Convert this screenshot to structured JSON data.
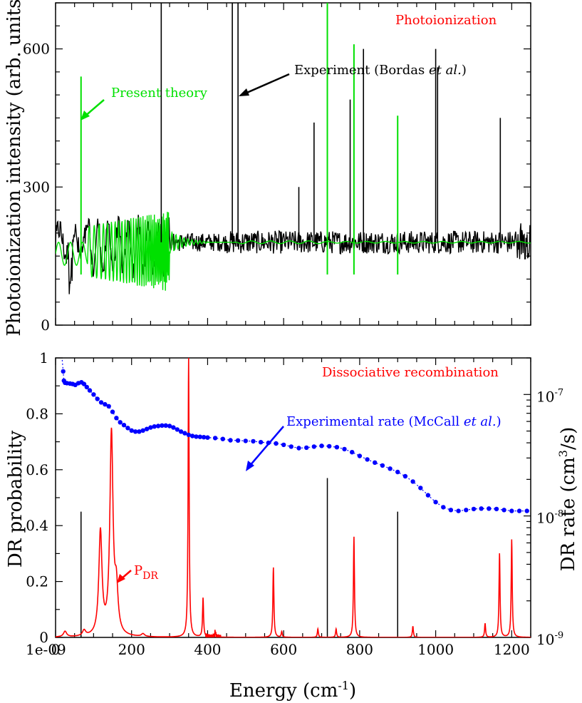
{
  "chart_data": [
    {
      "type": "line",
      "panel": "top",
      "title": "Photoionization",
      "xlabel": "",
      "ylabel": "Photoionization intensity (arb. units)",
      "xlim": [
        0,
        1250
      ],
      "ylim": [
        0,
        700
      ],
      "y_ticks": [
        0,
        300,
        600
      ],
      "y_tick_labels": [
        "0",
        "300",
        "600"
      ],
      "colors": {
        "experiment": "#000000",
        "theory": "#00e000",
        "title": "#ff0000"
      },
      "series": [
        {
          "name": "Experiment (Bordas et al.)",
          "baseline": 180,
          "peaks": [
            {
              "x": 278,
              "y": 700
            },
            {
              "x": 465,
              "y": 700
            },
            {
              "x": 480,
              "y": 700
            },
            {
              "x": 640,
              "y": 300
            },
            {
              "x": 680,
              "y": 440
            },
            {
              "x": 775,
              "y": 490
            },
            {
              "x": 810,
              "y": 600
            },
            {
              "x": 1000,
              "y": 600
            },
            {
              "x": 1005,
              "y": 560
            },
            {
              "x": 1170,
              "y": 450
            }
          ]
        },
        {
          "name": "Present theory",
          "baseline": 180,
          "peaks": [
            {
              "x": 67,
              "y": 540
            },
            {
              "x": 715,
              "y": 700
            },
            {
              "x": 785,
              "y": 610
            },
            {
              "x": 900,
              "y": 455
            }
          ]
        }
      ],
      "annotations": [
        {
          "text": "Present theory",
          "target_x": 67,
          "target_y": 450
        },
        {
          "text_prefix": "Experiment (Bordas ",
          "text_italic": "et al.",
          "text_suffix": ")",
          "target_x": 480,
          "target_y": 490
        }
      ]
    },
    {
      "type": "line",
      "panel": "bottom",
      "title": "Dissociative recombination",
      "xlabel_main": "Energy (cm",
      "xlabel_sup": "-1",
      "xlabel_end": ")",
      "ylabel": "DR probability",
      "ylabel_right_main": "DR rate (cm",
      "ylabel_right_sup": "3",
      "ylabel_right_end": "/s)",
      "xlim": [
        0,
        1250
      ],
      "ylim": [
        0,
        1
      ],
      "y_ticks": [
        0,
        0.2,
        0.4,
        0.6,
        0.8,
        1
      ],
      "y_tick_labels": [
        "0",
        "0.2",
        "0.4",
        "0.6",
        "0.8",
        "1"
      ],
      "y_extra_label": "1e-09",
      "x_ticks": [
        0,
        200,
        400,
        600,
        800,
        1000,
        1200
      ],
      "x_tick_labels": [
        "0",
        "200",
        "400",
        "600",
        "800",
        "1000",
        "1200"
      ],
      "y_right_range": [
        1e-09,
        2e-07
      ],
      "y_right_tick_labels": [
        "10",
        "10",
        "10"
      ],
      "y_right_tick_sups": [
        "-7",
        "-8",
        "-9"
      ],
      "y_right_tick_values": [
        1e-07,
        1e-08,
        1e-09
      ],
      "colors": {
        "probability": "#ff0000",
        "rate": "#0000ff",
        "lines": "#000000",
        "title": "#ff0000"
      },
      "series": [
        {
          "name": "P_DR",
          "baseline": 0,
          "peaks": [
            {
              "x": 25,
              "y": 0.02
            },
            {
              "x": 75,
              "y": 0.02
            },
            {
              "x": 118,
              "y": 0.37
            },
            {
              "x": 147,
              "y": 0.72
            },
            {
              "x": 160,
              "y": 0.15
            },
            {
              "x": 230,
              "y": 0.01
            },
            {
              "x": 350,
              "y": 1.0
            },
            {
              "x": 388,
              "y": 0.14
            },
            {
              "x": 420,
              "y": 0.02
            },
            {
              "x": 573,
              "y": 0.25
            },
            {
              "x": 595,
              "y": 0.02
            },
            {
              "x": 690,
              "y": 0.03
            },
            {
              "x": 738,
              "y": 0.03
            },
            {
              "x": 785,
              "y": 0.36
            },
            {
              "x": 940,
              "y": 0.04
            },
            {
              "x": 1130,
              "y": 0.05
            },
            {
              "x": 1168,
              "y": 0.3
            },
            {
              "x": 1200,
              "y": 0.35
            }
          ]
        },
        {
          "name": "Experimental rate (McCall et al.)",
          "units": "cm^3/s",
          "points": [
            [
              16,
              2.2e-07
            ],
            [
              20,
              1.55e-07
            ],
            [
              22,
              1.3e-07
            ],
            [
              25,
              1.25e-07
            ],
            [
              30,
              1.24e-07
            ],
            [
              38,
              1.23e-07
            ],
            [
              45,
              1.22e-07
            ],
            [
              52,
              1.2e-07
            ],
            [
              60,
              1.24e-07
            ],
            [
              68,
              1.26e-07
            ],
            [
              75,
              1.22e-07
            ],
            [
              82,
              1.15e-07
            ],
            [
              90,
              1.08e-07
            ],
            [
              100,
              1e-07
            ],
            [
              110,
              9.2e-08
            ],
            [
              120,
              8.6e-08
            ],
            [
              130,
              8.3e-08
            ],
            [
              140,
              8e-08
            ],
            [
              150,
              7.2e-08
            ],
            [
              160,
              6.4e-08
            ],
            [
              170,
              5.9e-08
            ],
            [
              180,
              5.6e-08
            ],
            [
              190,
              5.3e-08
            ],
            [
              200,
              5.05e-08
            ],
            [
              210,
              4.95e-08
            ],
            [
              220,
              4.95e-08
            ],
            [
              230,
              5.05e-08
            ],
            [
              240,
              5.2e-08
            ],
            [
              250,
              5.35e-08
            ],
            [
              260,
              5.45e-08
            ],
            [
              270,
              5.5e-08
            ],
            [
              280,
              5.55e-08
            ],
            [
              290,
              5.55e-08
            ],
            [
              300,
              5.5e-08
            ],
            [
              310,
              5.35e-08
            ],
            [
              320,
              5.15e-08
            ],
            [
              330,
              4.95e-08
            ],
            [
              340,
              4.8e-08
            ],
            [
              350,
              4.65e-08
            ],
            [
              360,
              4.55e-08
            ],
            [
              370,
              4.5e-08
            ],
            [
              380,
              4.48e-08
            ],
            [
              390,
              4.45e-08
            ],
            [
              400,
              4.42e-08
            ],
            [
              420,
              4.38e-08
            ],
            [
              440,
              4.3e-08
            ],
            [
              460,
              4.2e-08
            ],
            [
              480,
              4.18e-08
            ],
            [
              500,
              4.15e-08
            ],
            [
              520,
              4.12e-08
            ],
            [
              540,
              4.05e-08
            ],
            [
              560,
              4e-08
            ],
            [
              580,
              3.95e-08
            ],
            [
              600,
              3.85e-08
            ],
            [
              620,
              3.72e-08
            ],
            [
              640,
              3.62e-08
            ],
            [
              660,
              3.65e-08
            ],
            [
              680,
              3.72e-08
            ],
            [
              700,
              3.78e-08
            ],
            [
              720,
              3.75e-08
            ],
            [
              740,
              3.68e-08
            ],
            [
              760,
              3.55e-08
            ],
            [
              780,
              3.35e-08
            ],
            [
              800,
              3.12e-08
            ],
            [
              820,
              2.92e-08
            ],
            [
              840,
              2.75e-08
            ],
            [
              860,
              2.6e-08
            ],
            [
              880,
              2.45e-08
            ],
            [
              900,
              2.3e-08
            ],
            [
              920,
              2.12e-08
            ],
            [
              940,
              1.92e-08
            ],
            [
              960,
              1.7e-08
            ],
            [
              980,
              1.48e-08
            ],
            [
              1000,
              1.3e-08
            ],
            [
              1020,
              1.18e-08
            ],
            [
              1040,
              1.12e-08
            ],
            [
              1060,
              1.1e-08
            ],
            [
              1080,
              1.12e-08
            ],
            [
              1100,
              1.14e-08
            ],
            [
              1120,
              1.15e-08
            ],
            [
              1140,
              1.15e-08
            ],
            [
              1160,
              1.14e-08
            ],
            [
              1180,
              1.12e-08
            ],
            [
              1200,
              1.1e-08
            ],
            [
              1220,
              1.1e-08
            ],
            [
              1240,
              1.1e-08
            ]
          ]
        },
        {
          "name": "reference lines",
          "lines": [
            {
              "x": 67,
              "y": 0.45
            },
            {
              "x": 715,
              "y": 0.57
            },
            {
              "x": 900,
              "y": 0.45
            }
          ]
        }
      ],
      "annotations": [
        {
          "text_main": "P",
          "text_sub": "DR",
          "target_x": 160,
          "target_y": 0.2
        },
        {
          "text_prefix": "Experimental rate (McCall  ",
          "text_italic": "et al.",
          "text_suffix": ")",
          "target_x": 500,
          "target_y": 0.58
        }
      ]
    }
  ]
}
